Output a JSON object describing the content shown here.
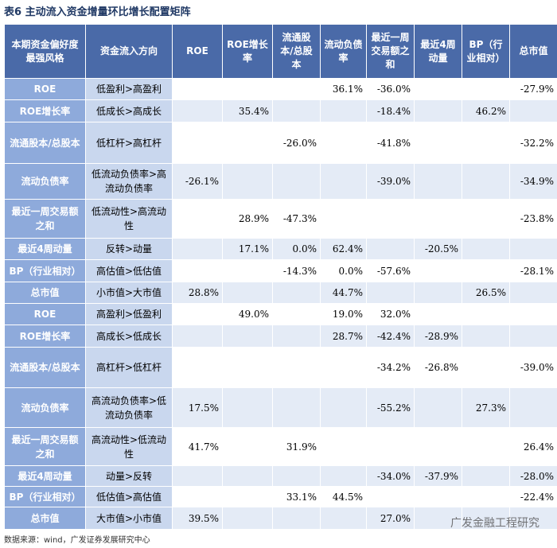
{
  "header": {
    "title": "表6 主动流入资金增量环比增长配置矩阵"
  },
  "table": {
    "columns": [
      "本期资金偏好度最强风格",
      "资金流入方向",
      "ROE",
      "ROE增长率",
      "流通股本/总股本",
      "流动负债率",
      "最近一周交易额之和",
      "最近4周动量",
      "BP（行业相对）",
      "总市值"
    ],
    "rows": [
      [
        "ROE",
        "低盈利>高盈利",
        null,
        null,
        null,
        "36.1%",
        "-36.0%",
        null,
        null,
        "-27.9%"
      ],
      [
        "ROE增长率",
        "低成长>高成长",
        null,
        "35.4%",
        null,
        null,
        "-18.4%",
        null,
        "46.2%",
        null
      ],
      [
        "流通股本/总股本",
        "低杠杆>高杠杆",
        null,
        null,
        "-26.0%",
        null,
        "-41.8%",
        null,
        null,
        "-32.2%"
      ],
      [
        "流动负债率",
        "低流动负债率>高流动负债率",
        "-26.1%",
        null,
        null,
        null,
        "-39.0%",
        null,
        null,
        "-34.9%"
      ],
      [
        "最近一周交易额之和",
        "低流动性>高流动性",
        null,
        "28.9%",
        "-47.3%",
        null,
        null,
        null,
        null,
        "-23.8%"
      ],
      [
        "最近4周动量",
        "反转>动量",
        null,
        "17.1%",
        "0.0%",
        "62.4%",
        null,
        "-20.5%",
        null,
        null
      ],
      [
        "BP（行业相对）",
        "高估值>低估值",
        null,
        null,
        "-14.3%",
        "0.0%",
        "-57.6%",
        null,
        null,
        "-28.1%"
      ],
      [
        "总市值",
        "小市值>大市值",
        "28.8%",
        null,
        null,
        "44.7%",
        null,
        null,
        "26.5%",
        null
      ],
      [
        "ROE",
        "高盈利>低盈利",
        null,
        "49.0%",
        null,
        "19.0%",
        "32.0%",
        null,
        null,
        null
      ],
      [
        "ROE增长率",
        "高成长>低成长",
        null,
        null,
        null,
        "28.7%",
        "-42.4%",
        "-28.9%",
        null,
        null
      ],
      [
        "流通股本/总股本",
        "高杠杆>低杠杆",
        null,
        null,
        null,
        null,
        "-34.2%",
        "-26.8%",
        null,
        "-39.0%"
      ],
      [
        "流动负债率",
        "高流动负债率>低流动负债率",
        "17.5%",
        null,
        null,
        null,
        "-55.2%",
        null,
        "27.3%",
        null
      ],
      [
        "最近一周交易额之和",
        "高流动性>低流动性",
        "41.7%",
        null,
        "31.9%",
        null,
        null,
        null,
        null,
        "26.4%"
      ],
      [
        "最近4周动量",
        "动量>反转",
        null,
        null,
        null,
        null,
        "-34.0%",
        "-37.9%",
        null,
        "-28.0%"
      ],
      [
        "BP（行业相对）",
        "低估值>高估值",
        null,
        null,
        "33.1%",
        "44.5%",
        null,
        null,
        null,
        "-22.4%"
      ],
      [
        "总市值",
        "大市值>小市值",
        "39.5%",
        null,
        null,
        null,
        "27.0%",
        null,
        null,
        null
      ]
    ]
  },
  "footer": {
    "source": "数据来源：wind，广发证券发展研究中心",
    "watermark": "广发金融工程研究"
  }
}
